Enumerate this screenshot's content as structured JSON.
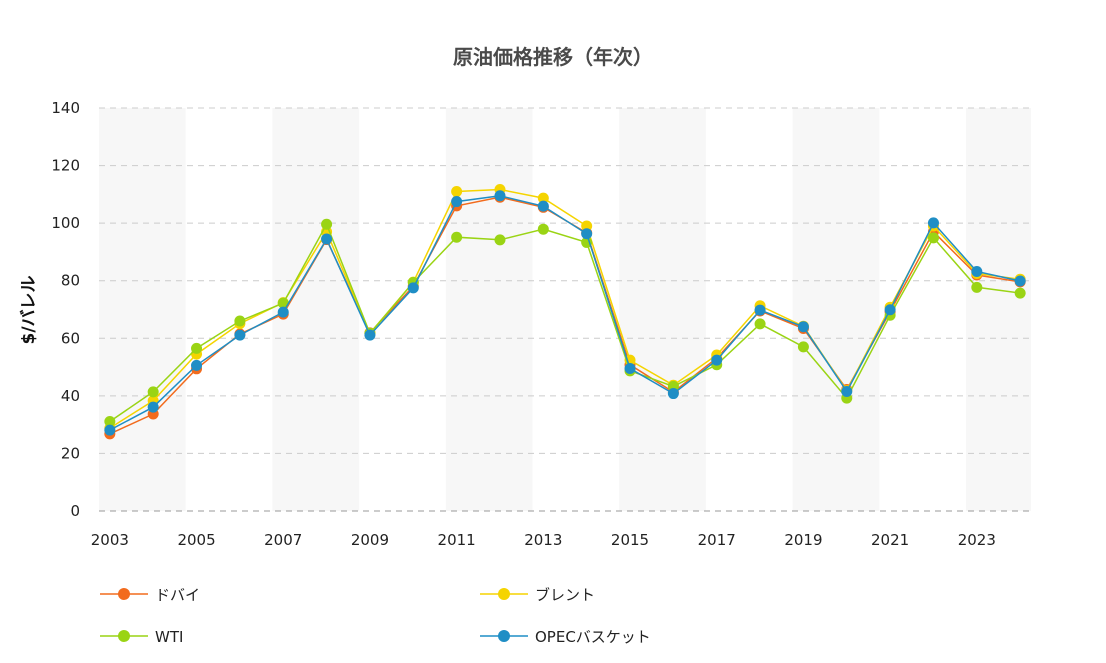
{
  "colors": {
    "band": "#f7f7f7",
    "grid": "#cccccc",
    "axis": "#999999"
  },
  "chart_data": {
    "type": "line",
    "title": "原油価格推移（年次）",
    "xlabel": "",
    "ylabel": "$/バレル",
    "ylim": [
      0,
      140
    ],
    "yticks": [
      0,
      20,
      40,
      60,
      80,
      100,
      120,
      140
    ],
    "x": [
      2003,
      2004,
      2005,
      2006,
      2007,
      2008,
      2009,
      2010,
      2011,
      2012,
      2013,
      2014,
      2015,
      2016,
      2017,
      2018,
      2019,
      2020,
      2021,
      2022,
      2023,
      2024
    ],
    "xtick_labels": [
      "2003",
      "2005",
      "2007",
      "2009",
      "2011",
      "2013",
      "2015",
      "2017",
      "2019",
      "2021",
      "2023"
    ],
    "grid": true,
    "legend_position": "bottom",
    "series": [
      {
        "name": "ドバイ",
        "color": "#f26b1d",
        "values": [
          26.8,
          33.7,
          49.4,
          61.5,
          68.4,
          94.3,
          61.9,
          78.1,
          106.0,
          109.0,
          105.5,
          96.6,
          50.8,
          41.3,
          53.1,
          69.5,
          63.4,
          42.2,
          69.2,
          97.0,
          82.0,
          79.6
        ]
      },
      {
        "name": "ブレント",
        "color": "#f5d400",
        "values": [
          28.8,
          38.3,
          54.5,
          65.1,
          72.4,
          97.0,
          61.7,
          79.5,
          111.0,
          111.7,
          108.7,
          99.0,
          52.4,
          43.7,
          54.2,
          71.3,
          64.2,
          41.8,
          70.8,
          99.0,
          82.5,
          80.5
        ]
      },
      {
        "name": "WTI",
        "color": "#9ad414",
        "values": [
          31.1,
          41.4,
          56.5,
          66.0,
          72.2,
          99.6,
          61.7,
          79.4,
          95.1,
          94.2,
          97.9,
          93.3,
          48.7,
          43.3,
          50.8,
          65.0,
          57.0,
          39.2,
          68.0,
          94.9,
          77.7,
          75.7
        ]
      },
      {
        "name": "OPECバスケット",
        "color": "#1f8ec5",
        "values": [
          28.1,
          36.1,
          50.6,
          61.1,
          69.1,
          94.5,
          61.1,
          77.5,
          107.5,
          109.5,
          105.9,
          96.3,
          49.5,
          40.8,
          52.4,
          69.8,
          64.0,
          41.5,
          69.9,
          100.1,
          83.2,
          79.9
        ]
      }
    ]
  }
}
